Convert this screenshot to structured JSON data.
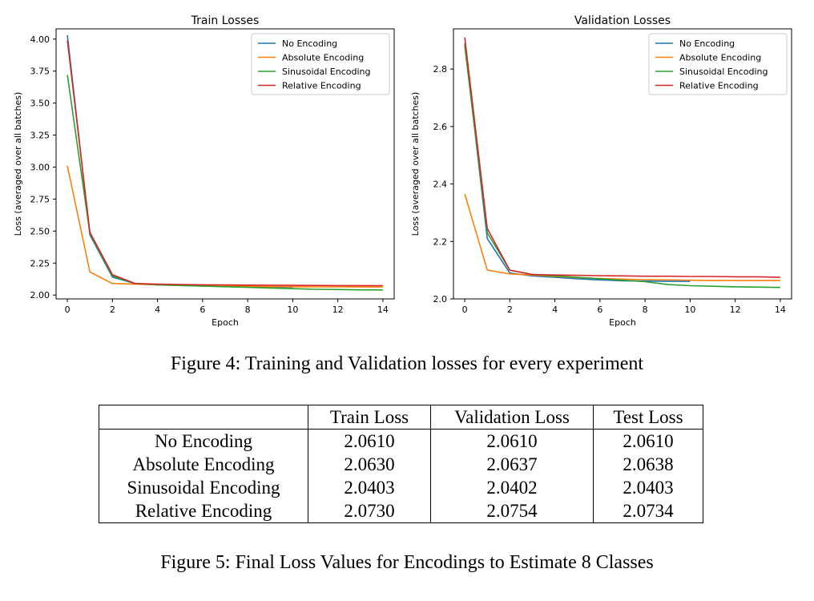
{
  "chart_data": [
    {
      "type": "line",
      "title": "Train Losses",
      "xlabel": "Epoch",
      "ylabel": "Loss (averaged over all batches)",
      "xlim": [
        -0.5,
        14.5
      ],
      "ylim": [
        1.97,
        4.08
      ],
      "xticks": [
        0,
        2,
        4,
        6,
        8,
        10,
        12,
        14
      ],
      "yticks": [
        2.0,
        2.25,
        2.5,
        2.75,
        3.0,
        3.25,
        3.5,
        3.75,
        4.0
      ],
      "ytick_labels": [
        "2.00",
        "2.25",
        "2.50",
        "2.75",
        "3.00",
        "3.25",
        "3.50",
        "3.75",
        "4.00"
      ],
      "grid": false,
      "legend_position": "top-right",
      "series": [
        {
          "name": "No Encoding",
          "color": "#1f77b4",
          "x": [
            0,
            1,
            2,
            3,
            4,
            5,
            6,
            7,
            8,
            9,
            10
          ],
          "y": [
            4.03,
            2.47,
            2.14,
            2.09,
            2.08,
            2.075,
            2.07,
            2.068,
            2.065,
            2.062,
            2.061
          ]
        },
        {
          "name": "Absolute Encoding",
          "color": "#ff7f0e",
          "x": [
            0,
            1,
            2,
            3,
            4,
            5,
            6,
            7,
            8,
            9,
            10,
            11,
            12,
            13,
            14
          ],
          "y": [
            3.01,
            2.18,
            2.09,
            2.085,
            2.08,
            2.075,
            2.072,
            2.07,
            2.068,
            2.066,
            2.065,
            2.064,
            2.064,
            2.063,
            2.063
          ]
        },
        {
          "name": "Sinusoidal Encoding",
          "color": "#2ca02c",
          "x": [
            0,
            1,
            2,
            3,
            4,
            5,
            6,
            7,
            8,
            9,
            10,
            11,
            12,
            13,
            14
          ],
          "y": [
            3.72,
            2.48,
            2.15,
            2.09,
            2.08,
            2.075,
            2.07,
            2.065,
            2.06,
            2.055,
            2.05,
            2.045,
            2.043,
            2.041,
            2.04
          ]
        },
        {
          "name": "Relative Encoding",
          "color": "#d62728",
          "x": [
            0,
            1,
            2,
            3,
            4,
            5,
            6,
            7,
            8,
            9,
            10,
            11,
            12,
            13,
            14
          ],
          "y": [
            3.99,
            2.49,
            2.16,
            2.09,
            2.085,
            2.083,
            2.08,
            2.079,
            2.078,
            2.077,
            2.076,
            2.075,
            2.074,
            2.074,
            2.073
          ]
        }
      ]
    },
    {
      "type": "line",
      "title": "Validation Losses",
      "xlabel": "Epoch",
      "ylabel": "Loss (averaged over all batches)",
      "xlim": [
        -0.5,
        14.5
      ],
      "ylim": [
        2.0,
        2.94
      ],
      "xticks": [
        0,
        2,
        4,
        6,
        8,
        10,
        12,
        14
      ],
      "yticks": [
        2.0,
        2.2,
        2.4,
        2.6,
        2.8
      ],
      "ytick_labels": [
        "2.0",
        "2.2",
        "2.4",
        "2.6",
        "2.8"
      ],
      "grid": false,
      "legend_position": "top-right",
      "series": [
        {
          "name": "No Encoding",
          "color": "#1f77b4",
          "x": [
            0,
            1,
            2,
            3,
            4,
            5,
            6,
            7,
            8,
            9,
            10
          ],
          "y": [
            2.89,
            2.21,
            2.09,
            2.08,
            2.075,
            2.07,
            2.066,
            2.063,
            2.062,
            2.061,
            2.061
          ]
        },
        {
          "name": "Absolute Encoding",
          "color": "#ff7f0e",
          "x": [
            0,
            1,
            2,
            3,
            4,
            5,
            6,
            7,
            8,
            9,
            10,
            11,
            12,
            13,
            14
          ],
          "y": [
            2.365,
            2.1,
            2.087,
            2.083,
            2.078,
            2.074,
            2.071,
            2.069,
            2.067,
            2.066,
            2.065,
            2.064,
            2.064,
            2.064,
            2.064
          ]
        },
        {
          "name": "Sinusoidal Encoding",
          "color": "#2ca02c",
          "x": [
            0,
            1,
            2,
            3,
            4,
            5,
            6,
            7,
            8,
            9,
            10,
            11,
            12,
            13,
            14
          ],
          "y": [
            2.88,
            2.23,
            2.1,
            2.085,
            2.08,
            2.075,
            2.07,
            2.065,
            2.06,
            2.05,
            2.046,
            2.044,
            2.042,
            2.041,
            2.04
          ]
        },
        {
          "name": "Relative Encoding",
          "color": "#d62728",
          "x": [
            0,
            1,
            2,
            3,
            4,
            5,
            6,
            7,
            8,
            9,
            10,
            11,
            12,
            13,
            14
          ],
          "y": [
            2.91,
            2.245,
            2.1,
            2.085,
            2.083,
            2.082,
            2.081,
            2.08,
            2.079,
            2.079,
            2.078,
            2.078,
            2.077,
            2.077,
            2.075
          ]
        }
      ]
    }
  ],
  "captions": {
    "figure4": "Figure 4: Training and Validation losses for every experiment",
    "figure5": "Figure 5: Final Loss Values for Encodings to Estimate 8 Classes"
  },
  "table": {
    "headers": [
      "",
      "Train Loss",
      "Validation Loss",
      "Test Loss"
    ],
    "rows": [
      [
        "No Encoding",
        "2.0610",
        "2.0610",
        "2.0610"
      ],
      [
        "Absolute Encoding",
        "2.0630",
        "2.0637",
        "2.0638"
      ],
      [
        "Sinusoidal Encoding",
        "2.0403",
        "2.0402",
        "2.0403"
      ],
      [
        "Relative Encoding",
        "2.0730",
        "2.0754",
        "2.0734"
      ]
    ]
  }
}
